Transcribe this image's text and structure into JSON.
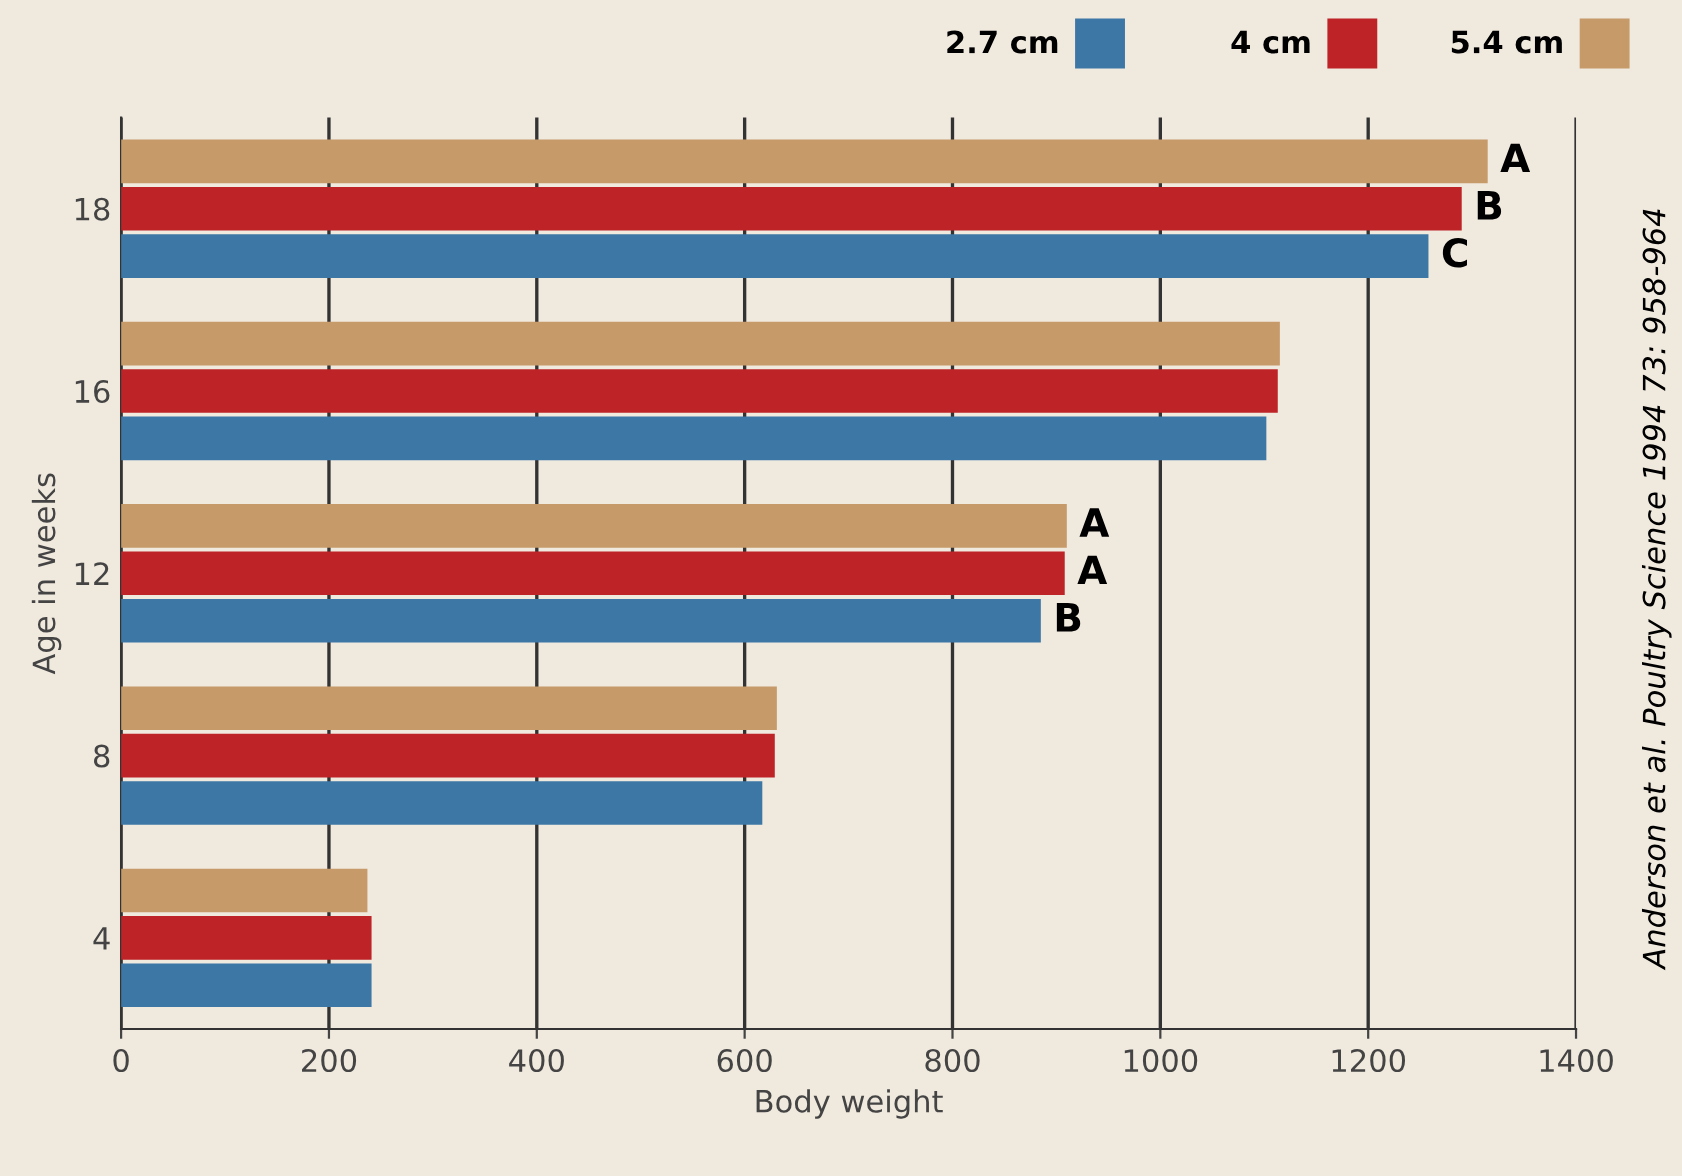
{
  "chart_data": {
    "type": "bar",
    "orientation": "horizontal",
    "xlabel": "Body weight",
    "ylabel": "Age in weeks",
    "categories": [
      "18",
      "16",
      "12",
      "8",
      "4"
    ],
    "series": [
      {
        "name": "2.7 cm",
        "color": "#3d77a6",
        "values": [
          1258,
          1102,
          885,
          617,
          241
        ],
        "value_labels": [
          "C",
          null,
          "B",
          null,
          null
        ]
      },
      {
        "name": "4 cm",
        "color": "#be2327",
        "values": [
          1290,
          1113,
          908,
          629,
          241
        ],
        "value_labels": [
          "B",
          null,
          "A",
          null,
          null
        ]
      },
      {
        "name": "5.4 cm",
        "color": "#c69a69",
        "values": [
          1315,
          1115,
          910,
          631,
          237
        ],
        "value_labels": [
          "A",
          null,
          "A",
          null,
          null
        ]
      }
    ],
    "xlim": [
      0,
      1400
    ],
    "xticks": [
      0,
      200,
      400,
      600,
      800,
      1000,
      1200,
      1400
    ],
    "grid": "x",
    "legend": "top right",
    "annotations": [
      "Anderson et al. Poultry Science 1994 73: 958-964"
    ]
  }
}
